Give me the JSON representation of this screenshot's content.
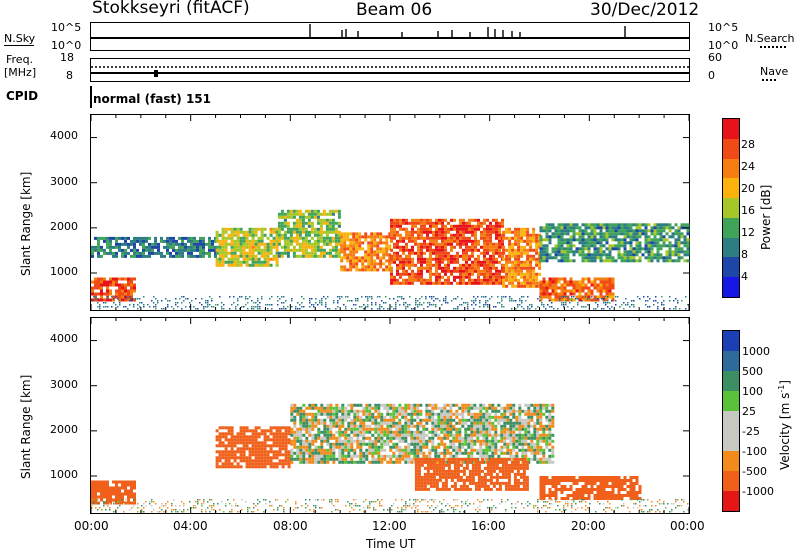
{
  "header": {
    "station": "Stokkseyri (fitACF)",
    "beam": "Beam 06",
    "date": "30/Dec/2012"
  },
  "top_panels": {
    "nsky_label": "N.Sky",
    "nsky_ticks": [
      "10^5",
      "10^0"
    ],
    "nsearch_label": "N.Search",
    "nsearch_ticks": [
      "10^5",
      "10^0"
    ],
    "freq_label_1": "Freq.",
    "freq_label_2": "[MHz]",
    "freq_ticks": [
      "18",
      "8"
    ],
    "nave_label": "Nave",
    "nave_ticks": [
      "60",
      "0"
    ],
    "cpid_label": "CPID",
    "cpid_value": "normal (fast) 151"
  },
  "chart_data": [
    {
      "type": "heatmap",
      "name": "power",
      "ylabel": "Slant Range [km]",
      "y_ticks": [
        "4000",
        "3000",
        "2000",
        "1000"
      ],
      "ylim": [
        180,
        4500
      ],
      "xlim": [
        0,
        24
      ],
      "colorbar": {
        "label": "Power [dB]",
        "ticks": [
          "28",
          "24",
          "20",
          "16",
          "12",
          "8",
          "4"
        ],
        "range": [
          0,
          30
        ],
        "colors": [
          "#e8121a",
          "#f04a16",
          "#f67d10",
          "#fbb20d",
          "#a5c727",
          "#40a35a",
          "#2d7e83",
          "#1e45a8",
          "#1616e6"
        ]
      },
      "regions": [
        {
          "t": [
            0.0,
            1.8
          ],
          "r": [
            400,
            900
          ],
          "power": 26
        },
        {
          "t": [
            0.0,
            5.0
          ],
          "r": [
            1400,
            1800
          ],
          "power": 8
        },
        {
          "t": [
            5.0,
            7.5
          ],
          "r": [
            1200,
            2000
          ],
          "power": 16
        },
        {
          "t": [
            7.5,
            10.0
          ],
          "r": [
            1400,
            2400
          ],
          "power": 14
        },
        {
          "t": [
            10.0,
            12.0
          ],
          "r": [
            1100,
            1900
          ],
          "power": 22
        },
        {
          "t": [
            12.0,
            16.5
          ],
          "r": [
            800,
            2200
          ],
          "power": 26
        },
        {
          "t": [
            16.5,
            18.0
          ],
          "r": [
            700,
            2000
          ],
          "power": 22
        },
        {
          "t": [
            18.0,
            21.0
          ],
          "r": [
            400,
            900
          ],
          "power": 24
        },
        {
          "t": [
            18.0,
            24.0
          ],
          "r": [
            1300,
            2100
          ],
          "power": 10
        }
      ]
    },
    {
      "type": "heatmap",
      "name": "velocity",
      "ylabel": "Slant Range [km]",
      "y_ticks": [
        "4000",
        "3000",
        "2000",
        "1000"
      ],
      "xlabel": "Time UT",
      "x_ticks": [
        "00:00",
        "04:00",
        "08:00",
        "12:00",
        "16:00",
        "20:00",
        "00:00"
      ],
      "xlim": [
        0,
        24
      ],
      "ylim": [
        180,
        4500
      ],
      "colorbar": {
        "label": "Velocity [m s",
        "label_sup": "-1",
        "label_end": "]",
        "ticks": [
          "1000",
          "500",
          "100",
          "25",
          "-25",
          "-100",
          "-500",
          "-1000"
        ],
        "colors": [
          "#1d3fb5",
          "#2e6a9a",
          "#3c8f63",
          "#5ac238",
          "#c8c8c2",
          "#c8c8c2",
          "#f28a1c",
          "#f0601a",
          "#e51616"
        ]
      },
      "regions": [
        {
          "t": [
            0.0,
            1.8
          ],
          "r": [
            400,
            900
          ],
          "velocity": -300
        },
        {
          "t": [
            5.0,
            8.0
          ],
          "r": [
            1200,
            2100
          ],
          "velocity": -200
        },
        {
          "t": [
            8.0,
            18.5
          ],
          "r": [
            1300,
            2600
          ],
          "velocity": 0
        },
        {
          "t": [
            13.0,
            17.5
          ],
          "r": [
            700,
            1400
          ],
          "velocity": -200
        },
        {
          "t": [
            18.0,
            22.0
          ],
          "r": [
            500,
            1000
          ],
          "velocity": -300
        }
      ]
    }
  ]
}
